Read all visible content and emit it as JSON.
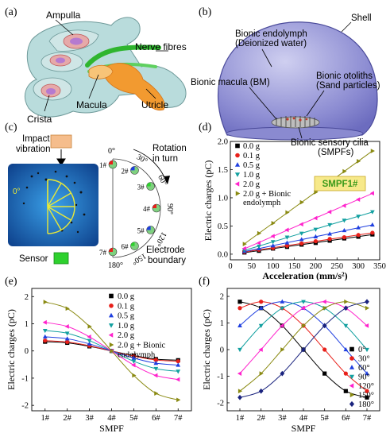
{
  "panels": {
    "a": {
      "tag": "(a)",
      "labels": {
        "ampulla": "Ampulla",
        "nerve": "Nerve fibres",
        "macula": "Macula",
        "utricle": "Utricle",
        "crista": "Crista"
      }
    },
    "b": {
      "tag": "(b)",
      "labels": {
        "endolymph_1": "Bionic endolymph",
        "endolymph_2": "(Deionized water)",
        "shell": "Shell",
        "macula": "Bionic macula (BM)",
        "otoliths_1": "Bionic otoliths",
        "otoliths_2": "(Sand particles)",
        "cilia_1": "Bionic sensory cilia",
        "cilia_2": "(SMPFs)"
      }
    },
    "c": {
      "tag": "(c)",
      "labels": {
        "impact_1": "Impact",
        "impact_2": "vibration",
        "rotation_1": "Rotation",
        "rotation_2": "in turn",
        "electrode_1": "Electrode",
        "electrode_2": "boundary",
        "sensor": "Sensor"
      },
      "angles": [
        "0°",
        "30°",
        "60°",
        "90°",
        "120°",
        "150°",
        "180°"
      ],
      "fibers": [
        "1#",
        "2#",
        "3#",
        "4#",
        "5#",
        "6#",
        "7#"
      ]
    },
    "d": {
      "tag": "(d)",
      "badge": "SMPF1#"
    },
    "e": {
      "tag": "(e)"
    },
    "f": {
      "tag": "(f)"
    }
  },
  "chart_data": [
    {
      "panel": "d",
      "type": "scatter",
      "xlabel": "Acceleration (mm/s²)",
      "ylabel": "Electric charges (pC)",
      "xlim": [
        0,
        350
      ],
      "ylim": [
        -0.1,
        2.0
      ],
      "xticks": [
        "0",
        "50",
        "100",
        "150",
        "200",
        "250",
        "300",
        "350"
      ],
      "yticks": [
        "0.0",
        "0.5",
        "1.0",
        "1.5",
        "2.0"
      ],
      "x": [
        33,
        67,
        100,
        133,
        167,
        200,
        233,
        267,
        300,
        333
      ],
      "series": [
        {
          "name": "0.0 g",
          "color": "#000000",
          "marker": "square",
          "values": [
            0.03,
            0.06,
            0.1,
            0.13,
            0.17,
            0.2,
            0.24,
            0.28,
            0.31,
            0.35
          ]
        },
        {
          "name": "0.1 g",
          "color": "#e8201a",
          "marker": "circle",
          "values": [
            0.04,
            0.08,
            0.11,
            0.15,
            0.19,
            0.23,
            0.27,
            0.3,
            0.34,
            0.38
          ]
        },
        {
          "name": "0.5 g",
          "color": "#1f3fe0",
          "marker": "triangle-up",
          "values": [
            0.05,
            0.1,
            0.15,
            0.2,
            0.26,
            0.31,
            0.36,
            0.42,
            0.47,
            0.52
          ]
        },
        {
          "name": "1.0 g",
          "color": "#12a0a0",
          "marker": "triangle-down",
          "values": [
            0.07,
            0.14,
            0.22,
            0.3,
            0.37,
            0.44,
            0.52,
            0.6,
            0.67,
            0.75
          ]
        },
        {
          "name": "2.0 g",
          "color": "#ff22cc",
          "marker": "triangle-left",
          "values": [
            0.1,
            0.2,
            0.32,
            0.43,
            0.53,
            0.64,
            0.75,
            0.86,
            0.97,
            1.08
          ]
        },
        {
          "name": "2.0 g + Bionic endolymph",
          "color": "#8a8a12",
          "marker": "triangle-right",
          "values": [
            0.18,
            0.37,
            0.55,
            0.74,
            0.92,
            1.1,
            1.28,
            1.47,
            1.65,
            1.83
          ]
        }
      ]
    },
    {
      "panel": "e",
      "type": "line",
      "xlabel": "SMPF",
      "ylabel": "Electric charges (pC)",
      "categories": [
        "1#",
        "2#",
        "3#",
        "4#",
        "5#",
        "6#",
        "7#"
      ],
      "ylim": [
        -2.2,
        2.3
      ],
      "yticks": [
        "-2",
        "-1",
        "0",
        "1",
        "2"
      ],
      "series": [
        {
          "name": "0.0 g",
          "color": "#000000",
          "marker": "square",
          "values": [
            0.34,
            0.3,
            0.17,
            0.0,
            -0.17,
            -0.3,
            -0.34
          ]
        },
        {
          "name": "0.1 g",
          "color": "#e8201a",
          "marker": "circle",
          "values": [
            0.38,
            0.33,
            0.19,
            0.0,
            -0.19,
            -0.33,
            -0.38
          ]
        },
        {
          "name": "0.5 g",
          "color": "#1f3fe0",
          "marker": "triangle-up",
          "values": [
            0.52,
            0.45,
            0.26,
            0.0,
            -0.26,
            -0.45,
            -0.52
          ]
        },
        {
          "name": "1.0 g",
          "color": "#12a0a0",
          "marker": "triangle-down",
          "values": [
            0.75,
            0.65,
            0.38,
            0.0,
            -0.38,
            -0.65,
            -0.75
          ]
        },
        {
          "name": "2.0 g",
          "color": "#ff22cc",
          "marker": "triangle-left",
          "values": [
            1.05,
            0.9,
            0.52,
            0.0,
            -0.52,
            -0.9,
            -1.05
          ]
        },
        {
          "name": "2.0 g + Bionic endolymph",
          "color": "#8a8a12",
          "marker": "triangle-right",
          "values": [
            1.8,
            1.56,
            0.9,
            0.0,
            -0.9,
            -1.56,
            -1.8
          ]
        }
      ]
    },
    {
      "panel": "f",
      "type": "line",
      "xlabel": "SMPF",
      "ylabel": "Electric charges (pC)",
      "categories": [
        "1#",
        "2#",
        "3#",
        "4#",
        "5#",
        "6#",
        "7#"
      ],
      "ylim": [
        -2.3,
        2.3
      ],
      "yticks": [
        "-2",
        "-1",
        "0",
        "1",
        "2"
      ],
      "series": [
        {
          "name": "0°",
          "color": "#000000",
          "marker": "square",
          "values": [
            1.8,
            1.56,
            0.9,
            0.0,
            -0.9,
            -1.56,
            -1.8
          ]
        },
        {
          "name": "30°",
          "color": "#e8201a",
          "marker": "circle",
          "values": [
            1.56,
            1.8,
            1.56,
            0.9,
            0.0,
            -0.9,
            -1.56
          ]
        },
        {
          "name": "60°",
          "color": "#1f3fe0",
          "marker": "triangle-up",
          "values": [
            0.9,
            1.56,
            1.8,
            1.56,
            0.9,
            0.0,
            -0.9
          ]
        },
        {
          "name": "90°",
          "color": "#12a0a0",
          "marker": "triangle-down",
          "values": [
            0.0,
            0.9,
            1.56,
            1.8,
            1.56,
            0.9,
            0.0
          ]
        },
        {
          "name": "120°",
          "color": "#ff22cc",
          "marker": "triangle-left",
          "values": [
            -0.9,
            0.0,
            0.9,
            1.56,
            1.8,
            1.56,
            0.9
          ]
        },
        {
          "name": "150°",
          "color": "#8a8a12",
          "marker": "triangle-right",
          "values": [
            -1.56,
            -0.9,
            0.0,
            0.9,
            1.56,
            1.8,
            1.56
          ]
        },
        {
          "name": "180°",
          "color": "#1a237e",
          "marker": "diamond",
          "values": [
            -1.8,
            -1.56,
            -0.9,
            0.0,
            0.9,
            1.56,
            1.8
          ]
        }
      ]
    }
  ]
}
